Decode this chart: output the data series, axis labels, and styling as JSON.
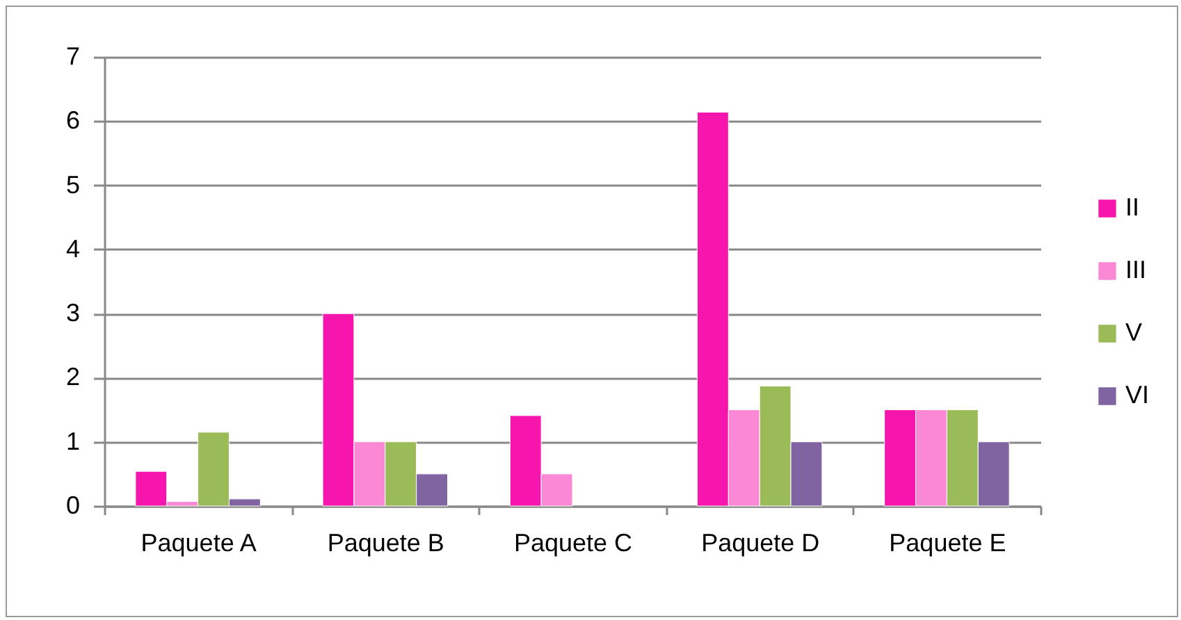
{
  "chart_data": {
    "type": "bar",
    "categories": [
      "Paquete A",
      "Paquete B",
      "Paquete C",
      "Paquete D",
      "Paquete E"
    ],
    "series": [
      {
        "name": "II",
        "color": "#f716ad",
        "values": [
          0.54,
          3,
          1.41,
          6.14,
          1.5
        ]
      },
      {
        "name": "III",
        "color": "#fb88d4",
        "values": [
          0.07,
          1,
          0.5,
          1.5,
          1.5
        ]
      },
      {
        "name": "V",
        "color": "#9bbb59",
        "values": [
          1.15,
          1,
          null,
          1.87,
          1.5
        ]
      },
      {
        "name": "VI",
        "color": "#8064a2",
        "values": [
          0.11,
          0.5,
          null,
          1,
          1
        ]
      }
    ],
    "ylim": [
      0,
      7
    ],
    "yticks": [
      0,
      1,
      2,
      3,
      4,
      5,
      6,
      7
    ],
    "grid": "y",
    "legend": "right"
  }
}
